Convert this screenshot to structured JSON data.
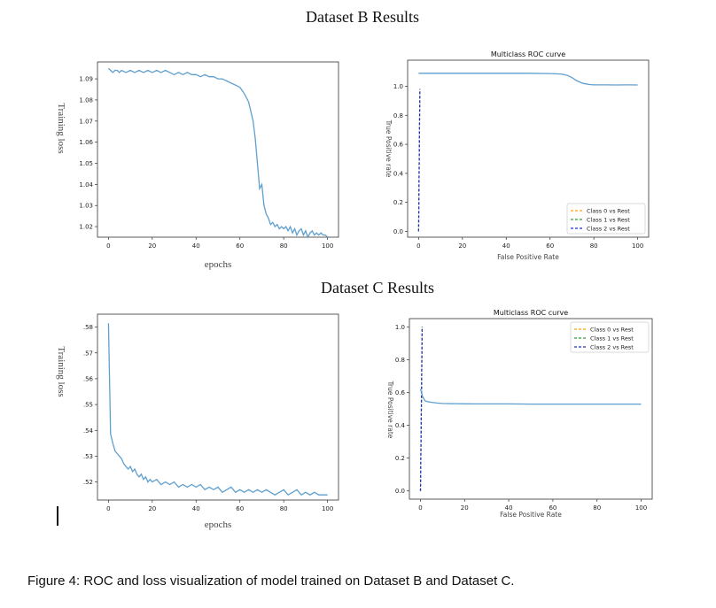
{
  "titles": {
    "dataset_b": "Dataset B Results",
    "dataset_c": "Dataset C Results"
  },
  "caption": "Figure 4: ROC and loss visualization of model trained on Dataset B and Dataset C.",
  "colors": {
    "line": "#5f9fcf",
    "class0": "#ffa500",
    "class1": "#2ca02c",
    "class2": "#1f2fd6"
  },
  "chart_data": [
    {
      "id": "loss-b",
      "type": "line",
      "title": "",
      "xlabel": "epochs",
      "ylabel": "Training loss",
      "xlim": [
        -5,
        105
      ],
      "ylim": [
        1.015,
        1.098
      ],
      "xticks": [
        0,
        20,
        40,
        60,
        80,
        100
      ],
      "xticklabels": [
        "0",
        "20",
        "40",
        "60",
        "80",
        "100"
      ],
      "yticks": [
        1.02,
        1.03,
        1.04,
        1.05,
        1.06,
        1.07,
        1.08,
        1.09
      ],
      "yticklabels": [
        "1.02",
        "1.03",
        "1.04",
        "1.05",
        "1.06",
        "1.07",
        "1.08",
        "1.09"
      ],
      "series": [
        {
          "x": [
            0,
            1,
            2,
            3,
            4,
            5,
            6,
            8,
            10,
            12,
            14,
            16,
            18,
            20,
            22,
            24,
            26,
            28,
            30,
            32,
            34,
            36,
            38,
            40,
            42,
            44,
            46,
            48,
            50,
            52,
            54,
            56,
            58,
            60,
            62,
            64,
            66,
            67,
            68,
            69,
            70,
            71,
            72,
            73,
            74,
            75,
            76,
            77,
            78,
            79,
            80,
            81,
            82,
            83,
            84,
            85,
            86,
            87,
            88,
            89,
            90,
            91,
            92,
            93,
            94,
            95,
            96,
            97,
            98,
            99,
            100
          ],
          "y": [
            1.095,
            1.094,
            1.093,
            1.094,
            1.094,
            1.093,
            1.094,
            1.093,
            1.094,
            1.093,
            1.094,
            1.093,
            1.094,
            1.093,
            1.094,
            1.093,
            1.094,
            1.093,
            1.092,
            1.093,
            1.092,
            1.093,
            1.092,
            1.092,
            1.091,
            1.092,
            1.091,
            1.091,
            1.09,
            1.09,
            1.089,
            1.088,
            1.087,
            1.086,
            1.083,
            1.079,
            1.07,
            1.062,
            1.05,
            1.038,
            1.04,
            1.03,
            1.026,
            1.024,
            1.021,
            1.022,
            1.02,
            1.021,
            1.019,
            1.02,
            1.019,
            1.02,
            1.018,
            1.02,
            1.017,
            1.019,
            1.016,
            1.018,
            1.019,
            1.016,
            1.018,
            1.015,
            1.017,
            1.018,
            1.016,
            1.017,
            1.016,
            1.017,
            1.016,
            1.016,
            1.015
          ]
        }
      ]
    },
    {
      "id": "roc-b",
      "type": "line",
      "title": "Multiclass ROC curve",
      "xlabel": "False Positive Rate",
      "ylabel": "True Positive rate",
      "xlim": [
        -5,
        105
      ],
      "ylim": [
        -0.04,
        1.18
      ],
      "xticks": [
        0,
        20,
        40,
        60,
        80,
        100
      ],
      "xticklabels": [
        "0",
        "20",
        "40",
        "60",
        "80",
        "100"
      ],
      "yticks": [
        0.0,
        0.2,
        0.4,
        0.6,
        0.8,
        1.0
      ],
      "yticklabels": [
        "0.0",
        "0.2",
        "0.4",
        "0.6",
        "0.8",
        "1.0"
      ],
      "series": [
        {
          "name": "Class 0 vs Rest",
          "dashed": true,
          "color": "#ffa500",
          "x": [
            0,
            0.3,
            0.6
          ],
          "y": [
            0.0,
            0.5,
            0.98
          ]
        },
        {
          "name": "Class 1 vs Rest",
          "dashed": true,
          "color": "#2ca02c",
          "x": [
            0,
            0.3,
            0.6
          ],
          "y": [
            0.0,
            0.5,
            0.98
          ]
        },
        {
          "name": "Class 2 vs Rest",
          "dashed": true,
          "color": "#1f2fd6",
          "x": [
            0,
            0.3,
            0.6
          ],
          "y": [
            0.0,
            0.5,
            0.98
          ]
        },
        {
          "x": [
            0,
            5,
            10,
            20,
            30,
            40,
            50,
            60,
            65,
            68,
            70,
            72,
            75,
            78,
            80,
            85,
            90,
            95,
            100
          ],
          "y": [
            1.09,
            1.09,
            1.09,
            1.09,
            1.09,
            1.09,
            1.09,
            1.088,
            1.085,
            1.075,
            1.06,
            1.04,
            1.02,
            1.012,
            1.01,
            1.01,
            1.009,
            1.01,
            1.009
          ]
        }
      ],
      "legend": {
        "placement": "lower right"
      }
    },
    {
      "id": "loss-c",
      "type": "line",
      "title": "",
      "xlabel": "epochs",
      "ylabel": "Training loss",
      "xlim": [
        -5,
        105
      ],
      "ylim": [
        0.513,
        0.585
      ],
      "xticks": [
        0,
        20,
        40,
        60,
        80,
        100
      ],
      "xticklabels": [
        "0",
        "20",
        "40",
        "60",
        "80",
        "100"
      ],
      "yticks": [
        0.52,
        0.53,
        0.54,
        0.55,
        0.56,
        0.57,
        0.58
      ],
      "yticklabels": [
        ".52",
        ".53",
        ".54",
        ".55",
        ".56",
        ".57",
        ".58"
      ],
      "series": [
        {
          "x": [
            0,
            1,
            2,
            3,
            4,
            5,
            6,
            7,
            8,
            9,
            10,
            11,
            12,
            13,
            14,
            15,
            16,
            17,
            18,
            19,
            20,
            22,
            24,
            26,
            28,
            30,
            32,
            34,
            36,
            38,
            40,
            42,
            44,
            46,
            48,
            50,
            52,
            54,
            56,
            58,
            60,
            62,
            64,
            66,
            68,
            70,
            72,
            74,
            76,
            78,
            80,
            82,
            84,
            86,
            88,
            90,
            92,
            94,
            96,
            98,
            100
          ],
          "y": [
            0.5815,
            0.5385,
            0.535,
            0.532,
            0.531,
            0.53,
            0.529,
            0.527,
            0.526,
            0.525,
            0.526,
            0.524,
            0.525,
            0.523,
            0.522,
            0.523,
            0.521,
            0.522,
            0.52,
            0.521,
            0.52,
            0.521,
            0.519,
            0.52,
            0.519,
            0.52,
            0.518,
            0.519,
            0.518,
            0.519,
            0.518,
            0.519,
            0.517,
            0.518,
            0.517,
            0.518,
            0.516,
            0.517,
            0.518,
            0.516,
            0.517,
            0.516,
            0.517,
            0.516,
            0.517,
            0.516,
            0.517,
            0.516,
            0.515,
            0.516,
            0.517,
            0.515,
            0.516,
            0.517,
            0.515,
            0.516,
            0.515,
            0.516,
            0.515,
            0.515,
            0.515
          ]
        }
      ]
    },
    {
      "id": "roc-c",
      "type": "line",
      "title": "Multiclass ROC curve",
      "xlabel": "False Positive Rate",
      "ylabel": "True Positive rate",
      "xlim": [
        -5,
        105
      ],
      "ylim": [
        -0.05,
        1.05
      ],
      "xticks": [
        0,
        20,
        40,
        60,
        80,
        100
      ],
      "xticklabels": [
        "0",
        "20",
        "40",
        "60",
        "80",
        "100"
      ],
      "yticks": [
        0.0,
        0.2,
        0.4,
        0.6,
        0.8,
        1.0
      ],
      "yticklabels": [
        "0.0",
        "0.2",
        "0.4",
        "0.6",
        "0.8",
        "1.0"
      ],
      "series": [
        {
          "name": "Class 0 vs Rest",
          "dashed": true,
          "color": "#ffa500",
          "x": [
            0,
            0.4,
            0.8
          ],
          "y": [
            0.0,
            0.5,
            1.0
          ]
        },
        {
          "name": "Class 1 vs Rest",
          "dashed": true,
          "color": "#2ca02c",
          "x": [
            0,
            0.4,
            0.8
          ],
          "y": [
            0.0,
            0.5,
            1.0
          ]
        },
        {
          "name": "Class 2 vs Rest",
          "dashed": true,
          "color": "#1f2fd6",
          "x": [
            0,
            0.4,
            0.8
          ],
          "y": [
            0.0,
            0.5,
            1.0
          ]
        },
        {
          "x": [
            0,
            0.5,
            1,
            2,
            3,
            5,
            8,
            10,
            15,
            20,
            25,
            30,
            40,
            50,
            60,
            70,
            80,
            90,
            100
          ],
          "y": [
            0.62,
            0.6,
            0.575,
            0.55,
            0.545,
            0.54,
            0.535,
            0.533,
            0.532,
            0.531,
            0.53,
            0.53,
            0.53,
            0.529,
            0.529,
            0.529,
            0.529,
            0.529,
            0.529
          ]
        }
      ],
      "legend": {
        "placement": "upper right"
      }
    }
  ]
}
